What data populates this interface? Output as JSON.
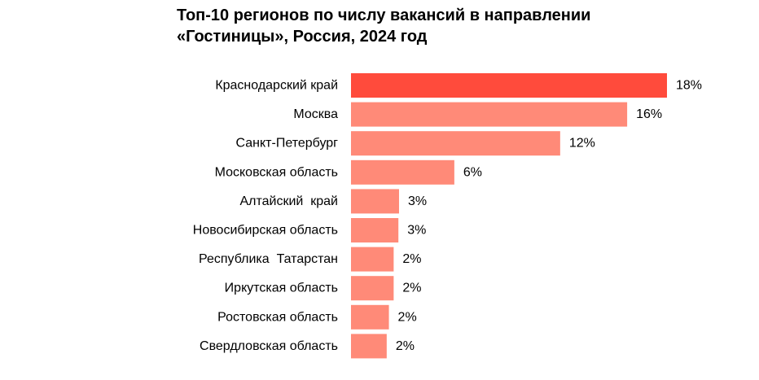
{
  "chart_data": {
    "type": "bar",
    "orientation": "horizontal",
    "title_lines": [
      "Топ-10 регионов по числу вакансий в направлении",
      "«Гостиницы», Россия, 2024 год"
    ],
    "categories": [
      "Краснодарский край",
      "Москва",
      "Санкт-Петербург",
      "Московская область",
      "Алтайский  край",
      "Новосибирская область",
      "Республика  Татарстан",
      "Иркутская область",
      "Ростовская область",
      "Свердловская область"
    ],
    "values": [
      18,
      16,
      12,
      6,
      3,
      3,
      2,
      2,
      2,
      2
    ],
    "value_labels": [
      "18%",
      "16%",
      "12%",
      "6%",
      "3%",
      "3%",
      "2%",
      "2%",
      "2%",
      "2%"
    ],
    "bar_fraction_of_max": [
      1.0,
      0.874,
      0.662,
      0.327,
      0.152,
      0.15,
      0.135,
      0.135,
      0.12,
      0.113
    ],
    "colors": {
      "highlight": "#FF4B3C",
      "bar": "#FF8A78"
    },
    "xlabel": "",
    "ylabel": "",
    "grid": false,
    "legend": "none"
  }
}
